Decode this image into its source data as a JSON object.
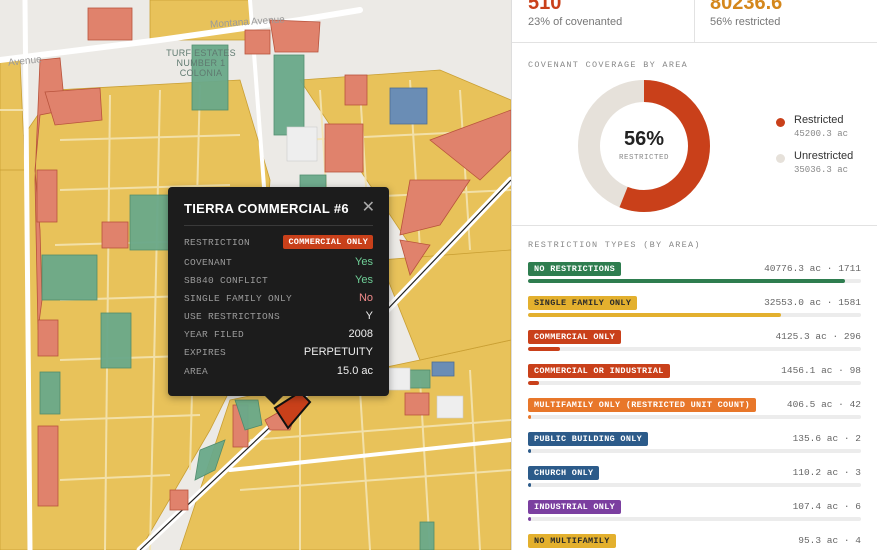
{
  "map": {
    "streets": [
      {
        "id": "montana",
        "label": "Montana Avenue"
      },
      {
        "id": "avenue-left",
        "label": "Avenue"
      }
    ],
    "area_label": {
      "lines": [
        "TURF ESTATES",
        "NUMBER 1",
        "COLONIA"
      ]
    }
  },
  "tooltip": {
    "title": "TIERRA COMMERCIAL #6",
    "close_icon": "close-icon",
    "rows": [
      {
        "key": "RESTRICTION",
        "value": "COMMERCIAL ONLY",
        "type": "badge",
        "color": "#c9401a"
      },
      {
        "key": "COVENANT",
        "value": "Yes",
        "color": "#6fcf97"
      },
      {
        "key": "SB840 CONFLICT",
        "value": "Yes",
        "color": "#6fcf97"
      },
      {
        "key": "SINGLE FAMILY ONLY",
        "value": "No",
        "color": "#f08a8a"
      },
      {
        "key": "USE RESTRICTIONS",
        "value": "Y",
        "color": "#eeeeee"
      },
      {
        "key": "YEAR FILED",
        "value": "2008",
        "color": "#eeeeee"
      },
      {
        "key": "EXPIRES",
        "value": "PERPETUITY",
        "color": "#eeeeee"
      },
      {
        "key": "AREA",
        "value": "15.0 ac",
        "color": "#eeeeee"
      }
    ]
  },
  "stats": {
    "left": {
      "value": "510",
      "sub": "23% of covenanted",
      "color": "#c9401a"
    },
    "right": {
      "value": "80236.6",
      "sub": "56% restricted",
      "color": "#d4871c"
    }
  },
  "coverage": {
    "title": "COVENANT COVERAGE BY AREA",
    "percent_label": "56%",
    "center_label": "RESTRICTED",
    "restricted_fraction": 0.56,
    "legend": [
      {
        "name": "Restricted",
        "value": "45200.3 ac",
        "color": "#c9401a"
      },
      {
        "name": "Unrestricted",
        "value": "35036.3 ac",
        "color": "#e6e1da"
      }
    ]
  },
  "restriction_types": {
    "title": "RESTRICTION TYPES (BY AREA)",
    "items": [
      {
        "label": "NO RESTRICTIONS",
        "stat": "40776.3 ac · 1711",
        "area": 40776.3,
        "color": "#2e7d4f",
        "dark_text": false
      },
      {
        "label": "SINGLE FAMILY ONLY",
        "stat": "32553.0 ac · 1581",
        "area": 32553.0,
        "color": "#e3b02e",
        "dark_text": true
      },
      {
        "label": "COMMERCIAL ONLY",
        "stat": "4125.3 ac · 296",
        "area": 4125.3,
        "color": "#c9401a",
        "dark_text": false
      },
      {
        "label": "COMMERCIAL OR INDUSTRIAL",
        "stat": "1456.1 ac · 98",
        "area": 1456.1,
        "color": "#c9401a",
        "dark_text": false
      },
      {
        "label": "MULTIFAMILY ONLY (RESTRICTED UNIT COUNT)",
        "stat": "406.5 ac · 42",
        "area": 406.5,
        "color": "#e8772a",
        "dark_text": false
      },
      {
        "label": "PUBLIC BUILDING ONLY",
        "stat": "135.6 ac · 2",
        "area": 135.6,
        "color": "#2c5b8a",
        "dark_text": false
      },
      {
        "label": "CHURCH ONLY",
        "stat": "110.2 ac · 3",
        "area": 110.2,
        "color": "#2c5b8a",
        "dark_text": false
      },
      {
        "label": "INDUSTRIAL ONLY",
        "stat": "107.4 ac · 6",
        "area": 107.4,
        "color": "#7b3fa0",
        "dark_text": false
      },
      {
        "label": "NO MULTIFAMILY",
        "stat": "95.3 ac · 4",
        "area": 95.3,
        "color": "#e3b02e",
        "dark_text": true
      }
    ]
  }
}
